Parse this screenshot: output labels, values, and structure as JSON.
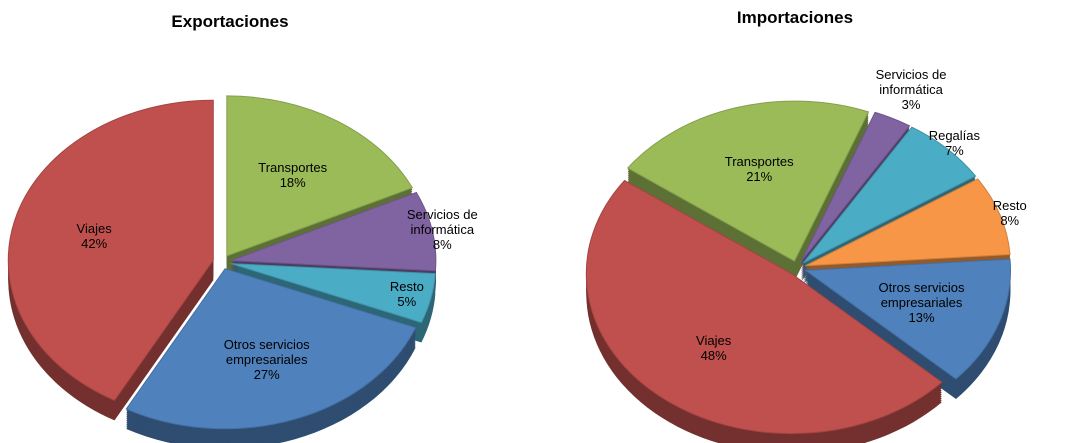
{
  "chart_data": [
    {
      "type": "pie",
      "title": "Exportaciones",
      "categories": [
        "Transportes",
        "Servicios de informática",
        "Resto",
        "Otros servicios empresariales",
        "Viajes"
      ],
      "values": [
        18,
        8,
        5,
        27,
        42
      ],
      "value_labels": [
        "18%",
        "8%",
        "5%",
        "27%",
        "42%"
      ],
      "colors": [
        "#9bbb59",
        "#8064a2",
        "#4bacc6",
        "#4f81bd",
        "#c0504d"
      ]
    },
    {
      "type": "pie",
      "title": "Importaciones",
      "categories": [
        "Transportes",
        "Servicios de informática",
        "Regalías",
        "Resto",
        "Otros servicios empresariales",
        "Viajes"
      ],
      "values": [
        21,
        3,
        7,
        8,
        13,
        48
      ],
      "value_labels": [
        "21%",
        "3%",
        "7%",
        "8%",
        "13%",
        "48%"
      ],
      "colors": [
        "#9bbb59",
        "#8064a2",
        "#4bacc6",
        "#f79646",
        "#4f81bd",
        "#c0504d"
      ]
    }
  ]
}
